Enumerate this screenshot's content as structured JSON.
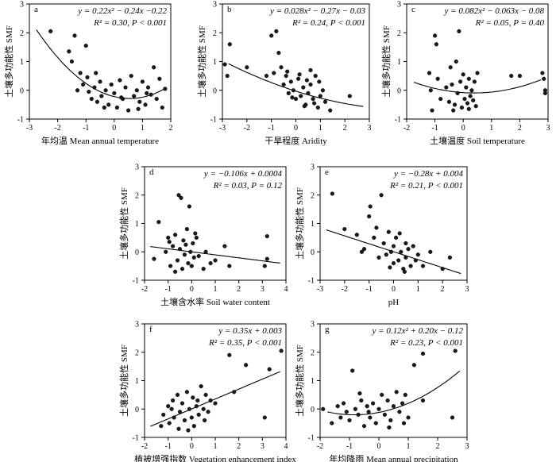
{
  "chart_data": [
    {
      "panel": "a",
      "type": "scatter",
      "fit": "quadratic",
      "coef": [
        0.22,
        -0.24,
        -0.22
      ],
      "eq": "y = 0.22x² − 0.24x −0.22",
      "stat": "R² = 0.30, P < 0.001",
      "xlabel": "年均温 Mean annual temperature",
      "ylabel": "土壤多功能性 SMF",
      "xlim": [
        -3,
        2
      ],
      "ylim": [
        -1,
        3
      ],
      "xticks": [
        "-3",
        "-2",
        "-1",
        "0",
        "1",
        "2"
      ],
      "yticks": [
        "-1",
        "0",
        "1",
        "2",
        "3"
      ],
      "points": [
        [
          -2.25,
          2.05
        ],
        [
          -1.6,
          1.35
        ],
        [
          -1.5,
          1.0
        ],
        [
          -1.4,
          1.9
        ],
        [
          -1.2,
          0.6
        ],
        [
          -1.1,
          0.2
        ],
        [
          -1.0,
          1.55
        ],
        [
          -0.95,
          0.45
        ],
        [
          -0.9,
          -0.05
        ],
        [
          -0.8,
          -0.3
        ],
        [
          -0.7,
          0.1
        ],
        [
          -0.6,
          -0.4
        ],
        [
          -0.5,
          0.3
        ],
        [
          -0.45,
          -0.2
        ],
        [
          -0.3,
          0.0
        ],
        [
          -0.2,
          -0.5
        ],
        [
          -0.1,
          0.2
        ],
        [
          0.0,
          -0.1
        ],
        [
          0.1,
          -0.6
        ],
        [
          0.2,
          0.35
        ],
        [
          0.3,
          -0.3
        ],
        [
          0.4,
          0.1
        ],
        [
          0.5,
          -0.7
        ],
        [
          0.6,
          0.5
        ],
        [
          0.7,
          -0.2
        ],
        [
          0.8,
          0.0
        ],
        [
          0.9,
          -0.4
        ],
        [
          1.0,
          0.3
        ],
        [
          1.1,
          -0.5
        ],
        [
          1.2,
          0.1
        ],
        [
          1.3,
          -0.15
        ],
        [
          1.4,
          0.8
        ],
        [
          1.5,
          -0.3
        ],
        [
          1.6,
          0.4
        ],
        [
          1.7,
          -0.6
        ],
        [
          1.8,
          0.05
        ],
        [
          -1.3,
          0.0
        ],
        [
          -0.35,
          -0.6
        ],
        [
          0.25,
          -0.25
        ],
        [
          0.85,
          -0.65
        ],
        [
          -0.65,
          0.6
        ],
        [
          1.15,
          -0.1
        ]
      ]
    },
    {
      "panel": "b",
      "type": "scatter",
      "fit": "quadratic",
      "coef": [
        0.028,
        -0.27,
        -0.03
      ],
      "eq": "y = 0.028x² − 0.27x − 0.03",
      "stat": "R² = 0.24, P < 0.001",
      "xlabel": "干旱程度 Aridity",
      "ylabel": "土壤多功能性 SMF",
      "xlim": [
        -3,
        3
      ],
      "ylim": [
        -1,
        3
      ],
      "xticks": [
        "-3",
        "-2",
        "-1",
        "0",
        "1",
        "2",
        "3"
      ],
      "yticks": [
        "-1",
        "0",
        "1",
        "2",
        "3"
      ],
      "points": [
        [
          -2.9,
          0.9
        ],
        [
          -2.8,
          0.5
        ],
        [
          -2.7,
          1.6
        ],
        [
          -2.0,
          0.8
        ],
        [
          -1.0,
          1.9
        ],
        [
          -0.8,
          2.05
        ],
        [
          -0.7,
          1.3
        ],
        [
          -1.2,
          0.5
        ],
        [
          -0.9,
          0.6
        ],
        [
          -0.6,
          0.8
        ],
        [
          -0.5,
          0.2
        ],
        [
          -0.4,
          0.5
        ],
        [
          -0.3,
          -0.1
        ],
        [
          -0.2,
          0.3
        ],
        [
          -0.1,
          0.0
        ],
        [
          0.0,
          -0.3
        ],
        [
          0.1,
          0.4
        ],
        [
          0.2,
          -0.2
        ],
        [
          0.3,
          0.1
        ],
        [
          0.4,
          -0.5
        ],
        [
          0.5,
          -0.1
        ],
        [
          0.6,
          0.2
        ],
        [
          0.7,
          -0.3
        ],
        [
          0.8,
          0.5
        ],
        [
          0.9,
          -0.6
        ],
        [
          1.0,
          -0.2
        ],
        [
          1.1,
          0.0
        ],
        [
          1.2,
          -0.4
        ],
        [
          1.4,
          -0.7
        ],
        [
          2.2,
          -0.2
        ],
        [
          0.6,
          0.7
        ],
        [
          0.15,
          0.55
        ],
        [
          -0.15,
          -0.25
        ],
        [
          0.35,
          -0.55
        ],
        [
          0.75,
          -0.45
        ],
        [
          0.95,
          0.3
        ],
        [
          -0.35,
          0.65
        ],
        [
          0.45,
          0.35
        ]
      ]
    },
    {
      "panel": "c",
      "type": "scatter",
      "fit": "quadratic",
      "coef": [
        0.082,
        -0.063,
        -0.08
      ],
      "eq": "y = 0.082x² − 0.063x − 0.08",
      "stat": "R² = 0.05, P = 0.40",
      "xlabel": "土壤温度 Soil temperature",
      "ylabel": "土壤多功能性 SMF",
      "xlim": [
        -2,
        3
      ],
      "ylim": [
        -1,
        3
      ],
      "xticks": [
        "-2",
        "-1",
        "0",
        "1",
        "2",
        "3"
      ],
      "yticks": [
        "-1",
        "0",
        "1",
        "2",
        "3"
      ],
      "points": [
        [
          -1.2,
          0.6
        ],
        [
          -1.15,
          0.0
        ],
        [
          -1.1,
          -0.7
        ],
        [
          -1.0,
          1.9
        ],
        [
          -0.95,
          1.6
        ],
        [
          -0.9,
          0.4
        ],
        [
          -0.8,
          -0.3
        ],
        [
          -0.6,
          0.1
        ],
        [
          -0.5,
          -0.4
        ],
        [
          -0.45,
          0.8
        ],
        [
          -0.4,
          0.2
        ],
        [
          -0.3,
          -0.5
        ],
        [
          -0.25,
          1.0
        ],
        [
          -0.2,
          -0.1
        ],
        [
          -0.15,
          2.05
        ],
        [
          -0.1,
          0.3
        ],
        [
          -0.05,
          -0.6
        ],
        [
          0.0,
          0.55
        ],
        [
          0.05,
          -0.3
        ],
        [
          0.1,
          0.1
        ],
        [
          0.15,
          -0.45
        ],
        [
          0.2,
          0.4
        ],
        [
          0.25,
          -0.2
        ],
        [
          0.3,
          0.0
        ],
        [
          0.35,
          -0.35
        ],
        [
          0.4,
          0.3
        ],
        [
          0.45,
          -0.55
        ],
        [
          0.5,
          0.6
        ],
        [
          1.7,
          0.5
        ],
        [
          2.0,
          0.5
        ],
        [
          2.8,
          0.6
        ],
        [
          2.85,
          0.4
        ],
        [
          2.9,
          0.0
        ],
        [
          2.9,
          -0.1
        ],
        [
          -0.35,
          -0.7
        ],
        [
          0.2,
          -0.65
        ]
      ]
    },
    {
      "panel": "d",
      "type": "scatter",
      "fit": "linear",
      "coef": [
        0,
        -0.106,
        0.0004
      ],
      "eq": "y = −0.106x + 0.0004",
      "stat": "R² = 0.03, P = 0.12",
      "xlabel": "土壤含水率 Soil water content",
      "ylabel": "土壤多功能性 SMF",
      "xlim": [
        -2,
        4
      ],
      "ylim": [
        -1,
        3
      ],
      "xticks": [
        "-2",
        "-1",
        "0",
        "1",
        "2",
        "3",
        "4"
      ],
      "yticks": [
        "-1",
        "0",
        "1",
        "2",
        "3"
      ],
      "points": [
        [
          -1.6,
          -0.25
        ],
        [
          -1.4,
          1.05
        ],
        [
          -1.1,
          0.0
        ],
        [
          -1.0,
          0.5
        ],
        [
          -0.9,
          -0.5
        ],
        [
          -0.8,
          0.2
        ],
        [
          -0.7,
          0.6
        ],
        [
          -0.6,
          -0.3
        ],
        [
          -0.55,
          2.0
        ],
        [
          -0.5,
          0.1
        ],
        [
          -0.45,
          1.9
        ],
        [
          -0.4,
          -0.6
        ],
        [
          -0.35,
          0.4
        ],
        [
          -0.3,
          -0.1
        ],
        [
          -0.2,
          0.8
        ],
        [
          -0.15,
          -0.4
        ],
        [
          -0.1,
          1.6
        ],
        [
          -0.05,
          0.0
        ],
        [
          0.0,
          -0.5
        ],
        [
          0.05,
          0.3
        ],
        [
          0.1,
          -0.2
        ],
        [
          0.2,
          0.5
        ],
        [
          0.5,
          -0.6
        ],
        [
          0.6,
          0.0
        ],
        [
          0.8,
          -0.4
        ],
        [
          1.0,
          -0.3
        ],
        [
          1.4,
          0.2
        ],
        [
          1.6,
          -0.5
        ],
        [
          3.1,
          -0.5
        ],
        [
          3.2,
          0.55
        ],
        [
          3.2,
          -0.25
        ],
        [
          -0.7,
          -0.7
        ],
        [
          -0.25,
          0.25
        ],
        [
          0.3,
          -0.15
        ],
        [
          -0.95,
          0.35
        ],
        [
          0.15,
          0.65
        ]
      ]
    },
    {
      "panel": "e",
      "type": "scatter",
      "fit": "linear",
      "coef": [
        0,
        -0.28,
        0.004
      ],
      "eq": "y = −0.28x + 0.004",
      "stat": "R² = 0.21, P < 0.001",
      "xlabel": "pH",
      "ylabel": "土壤多功能性 SMF",
      "xlim": [
        -3,
        3
      ],
      "ylim": [
        -1,
        3
      ],
      "xticks": [
        "-3",
        "-2",
        "-1",
        "0",
        "1",
        "2",
        "3"
      ],
      "yticks": [
        "-1",
        "0",
        "1",
        "2",
        "3"
      ],
      "points": [
        [
          -2.5,
          2.05
        ],
        [
          -2.0,
          0.8
        ],
        [
          -1.5,
          0.6
        ],
        [
          -1.2,
          0.1
        ],
        [
          -1.0,
          1.25
        ],
        [
          -0.95,
          1.6
        ],
        [
          -0.8,
          0.5
        ],
        [
          -0.6,
          -0.2
        ],
        [
          -0.5,
          2.0
        ],
        [
          -0.4,
          0.3
        ],
        [
          -0.3,
          -0.1
        ],
        [
          -0.2,
          0.7
        ],
        [
          -0.1,
          0.0
        ],
        [
          0.0,
          -0.4
        ],
        [
          0.0,
          0.2
        ],
        [
          0.1,
          0.5
        ],
        [
          0.2,
          -0.3
        ],
        [
          0.3,
          0.0
        ],
        [
          0.4,
          -0.6
        ],
        [
          0.5,
          0.3
        ],
        [
          0.5,
          -0.2
        ],
        [
          0.6,
          0.1
        ],
        [
          0.7,
          -0.5
        ],
        [
          0.8,
          0.2
        ],
        [
          0.9,
          -0.3
        ],
        [
          1.0,
          -0.1
        ],
        [
          1.2,
          -0.5
        ],
        [
          1.5,
          0.0
        ],
        [
          2.0,
          -0.6
        ],
        [
          2.3,
          -0.2
        ],
        [
          -1.3,
          0.0
        ],
        [
          -0.7,
          0.85
        ],
        [
          0.25,
          0.65
        ],
        [
          -0.15,
          -0.55
        ],
        [
          0.45,
          -0.7
        ]
      ]
    },
    {
      "panel": "f",
      "type": "scatter",
      "fit": "linear",
      "coef": [
        0,
        0.35,
        0.003
      ],
      "eq": "y = 0.35x + 0.003",
      "stat": "R² = 0.35, P < 0.001",
      "xlabel": "植被增强指数 Vegetation enhancement index",
      "ylabel": "土壤多功能性 SMF",
      "xlim": [
        -2,
        4
      ],
      "ylim": [
        -1,
        3
      ],
      "xticks": [
        "-2",
        "-1",
        "0",
        "1",
        "2",
        "3",
        "4"
      ],
      "yticks": [
        "-1",
        "0",
        "1",
        "2",
        "3"
      ],
      "points": [
        [
          -1.3,
          -0.6
        ],
        [
          -1.2,
          -0.2
        ],
        [
          -1.0,
          0.1
        ],
        [
          -0.95,
          -0.5
        ],
        [
          -0.8,
          0.3
        ],
        [
          -0.75,
          -0.3
        ],
        [
          -0.6,
          0.5
        ],
        [
          -0.5,
          -0.1
        ],
        [
          -0.4,
          0.2
        ],
        [
          -0.3,
          -0.4
        ],
        [
          -0.2,
          0.6
        ],
        [
          -0.1,
          0.0
        ],
        [
          0.0,
          -0.3
        ],
        [
          0.05,
          0.4
        ],
        [
          0.1,
          -0.6
        ],
        [
          0.2,
          0.1
        ],
        [
          0.3,
          -0.2
        ],
        [
          0.4,
          0.8
        ],
        [
          0.5,
          0.0
        ],
        [
          0.6,
          0.5
        ],
        [
          0.7,
          -0.1
        ],
        [
          0.8,
          0.3
        ],
        [
          1.0,
          0.2
        ],
        [
          1.6,
          1.9
        ],
        [
          1.8,
          0.6
        ],
        [
          2.3,
          1.55
        ],
        [
          3.1,
          -0.3
        ],
        [
          3.3,
          1.4
        ],
        [
          3.8,
          2.05
        ],
        [
          -0.55,
          -0.7
        ],
        [
          0.25,
          0.3
        ],
        [
          -0.85,
          0.0
        ],
        [
          0.55,
          -0.4
        ],
        [
          -0.15,
          -0.75
        ]
      ]
    },
    {
      "panel": "g",
      "type": "scatter",
      "fit": "quadratic",
      "coef": [
        0.12,
        0.2,
        -0.12
      ],
      "eq": "y = 0.12x² + 0.20x − 0.12",
      "stat": "R² = 0.23, P < 0.001",
      "xlabel": "年均降雨 Mean annual precipitation",
      "ylabel": "土壤多功能性 SMF",
      "xlim": [
        -2,
        3
      ],
      "ylim": [
        -1,
        3
      ],
      "xticks": [
        "-2",
        "-1",
        "0",
        "1",
        "2",
        "3"
      ],
      "yticks": [
        "-1",
        "0",
        "1",
        "2",
        "3"
      ],
      "points": [
        [
          -1.9,
          0.0
        ],
        [
          -1.6,
          -0.5
        ],
        [
          -1.4,
          0.1
        ],
        [
          -1.3,
          -0.3
        ],
        [
          -1.2,
          0.2
        ],
        [
          -1.1,
          -0.1
        ],
        [
          -1.0,
          -0.4
        ],
        [
          -0.9,
          1.35
        ],
        [
          -0.8,
          0.0
        ],
        [
          -0.7,
          -0.2
        ],
        [
          -0.6,
          0.3
        ],
        [
          -0.5,
          -0.6
        ],
        [
          -0.4,
          0.1
        ],
        [
          -0.3,
          -0.3
        ],
        [
          -0.2,
          0.2
        ],
        [
          -0.1,
          -0.5
        ],
        [
          0.0,
          0.0
        ],
        [
          0.1,
          0.5
        ],
        [
          0.2,
          -0.2
        ],
        [
          0.3,
          0.3
        ],
        [
          0.4,
          -0.4
        ],
        [
          0.5,
          0.1
        ],
        [
          0.6,
          0.6
        ],
        [
          0.7,
          -0.1
        ],
        [
          0.8,
          0.2
        ],
        [
          0.9,
          0.5
        ],
        [
          1.0,
          -0.3
        ],
        [
          1.2,
          1.55
        ],
        [
          1.5,
          1.95
        ],
        [
          1.5,
          0.3
        ],
        [
          2.5,
          -0.3
        ],
        [
          2.6,
          2.05
        ],
        [
          -0.65,
          0.55
        ],
        [
          0.35,
          -0.65
        ],
        [
          -0.35,
          -0.1
        ],
        [
          0.85,
          -0.5
        ]
      ]
    }
  ]
}
